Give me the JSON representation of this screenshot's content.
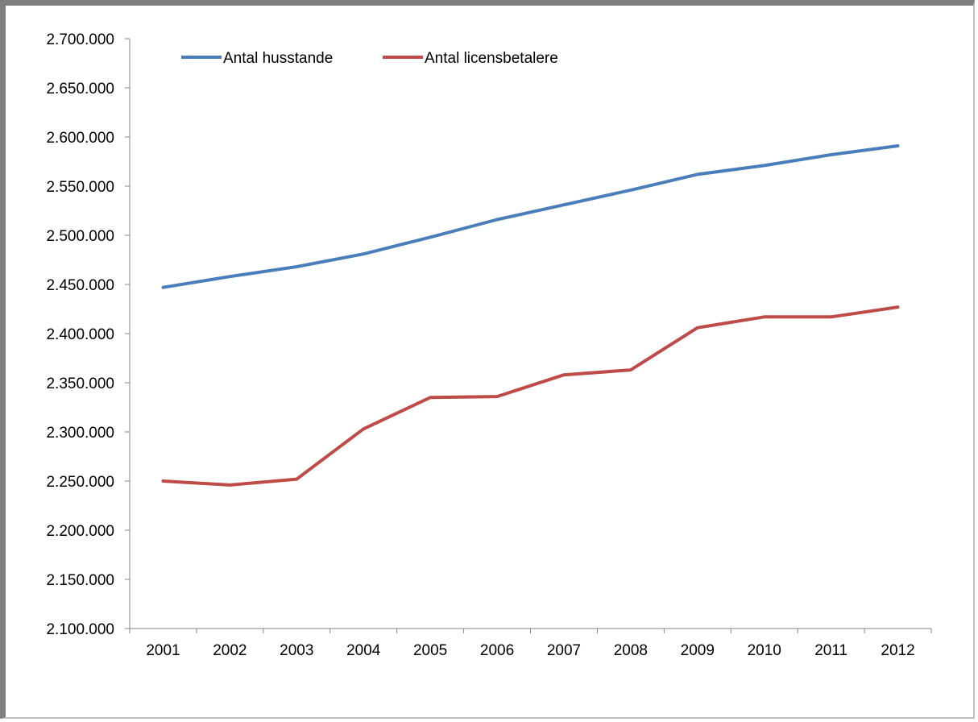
{
  "chart_data": {
    "type": "line",
    "title": "",
    "xlabel": "",
    "ylabel": "",
    "x": [
      "2001",
      "2002",
      "2003",
      "2004",
      "2005",
      "2006",
      "2007",
      "2008",
      "2009",
      "2010",
      "2011",
      "2012"
    ],
    "ylim": [
      2100000,
      2700000
    ],
    "y_ticks": [
      2100000,
      2150000,
      2200000,
      2250000,
      2300000,
      2350000,
      2400000,
      2450000,
      2500000,
      2550000,
      2600000,
      2650000,
      2700000
    ],
    "y_tick_labels": [
      "2.100.000",
      "2.150.000",
      "2.200.000",
      "2.250.000",
      "2.300.000",
      "2.350.000",
      "2.400.000",
      "2.450.000",
      "2.500.000",
      "2.550.000",
      "2.600.000",
      "2.650.000",
      "2.700.000"
    ],
    "grid": false,
    "legend_position": "top-left",
    "series": [
      {
        "name": "Antal husstande",
        "color": "#4a7ebb",
        "values": [
          2447000,
          2458000,
          2468000,
          2481000,
          2498000,
          2516000,
          2531000,
          2546000,
          2562000,
          2571000,
          2582000,
          2591000
        ]
      },
      {
        "name": "Antal licensbetalere",
        "color": "#be4b48",
        "values": [
          2250000,
          2246000,
          2252000,
          2303000,
          2335000,
          2336000,
          2358000,
          2363000,
          2406000,
          2417000,
          2417000,
          2427000
        ]
      }
    ]
  }
}
